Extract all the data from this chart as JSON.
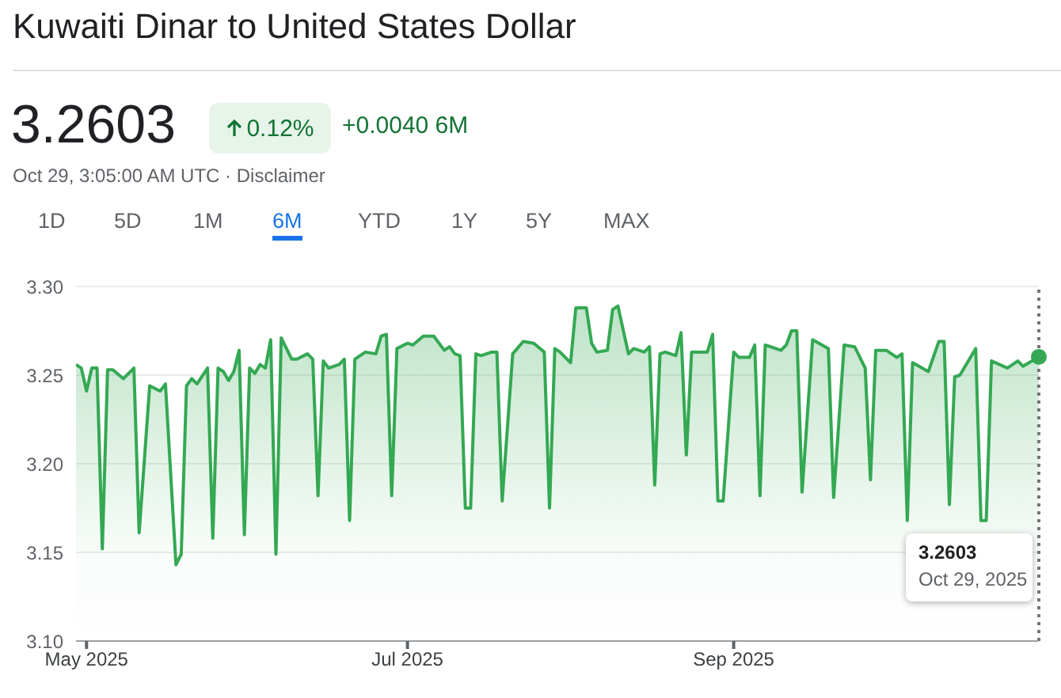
{
  "chart_data": {
    "type": "area",
    "title": "Kuwaiti Dinar to United States Dollar",
    "annotations": [
      "3.2603",
      "0.12%",
      "+0.0040 6M",
      "Oct 29, 3:05:00 AM UTC · Disclaimer",
      "1D",
      "5D",
      "1M",
      "6M",
      "YTD",
      "1Y",
      "5Y",
      "MAX",
      "3.2603",
      "Oct 29, 2025"
    ],
    "x": [
      "2025-04-29",
      "2025-04-30",
      "2025-05-01",
      "2025-05-02",
      "2025-05-03",
      "2025-05-04",
      "2025-05-05",
      "2025-05-06",
      "2025-05-08",
      "2025-05-10",
      "2025-05-11",
      "2025-05-13",
      "2025-05-15",
      "2025-05-16",
      "2025-05-18",
      "2025-05-19",
      "2025-05-20",
      "2025-05-21",
      "2025-05-22",
      "2025-05-24",
      "2025-05-25",
      "2025-05-26",
      "2025-05-27",
      "2025-05-28",
      "2025-05-29",
      "2025-05-30",
      "2025-05-31",
      "2025-06-01",
      "2025-06-02",
      "2025-06-03",
      "2025-06-04",
      "2025-06-05",
      "2025-06-06",
      "2025-06-07",
      "2025-06-09",
      "2025-06-10",
      "2025-06-12",
      "2025-06-13",
      "2025-06-14",
      "2025-06-15",
      "2025-06-16",
      "2025-06-18",
      "2025-06-19",
      "2025-06-20",
      "2025-06-21",
      "2025-06-23",
      "2025-06-25",
      "2025-06-26",
      "2025-06-27",
      "2025-06-28",
      "2025-06-29",
      "2025-07-01",
      "2025-07-02",
      "2025-07-04",
      "2025-07-06",
      "2025-07-08",
      "2025-07-09",
      "2025-07-10",
      "2025-07-11",
      "2025-07-12",
      "2025-07-13",
      "2025-07-14",
      "2025-07-15",
      "2025-07-17",
      "2025-07-18",
      "2025-07-19",
      "2025-07-21",
      "2025-07-23",
      "2025-07-25",
      "2025-07-27",
      "2025-07-28",
      "2025-07-29",
      "2025-07-30",
      "2025-08-01",
      "2025-08-02",
      "2025-08-04",
      "2025-08-05",
      "2025-08-06",
      "2025-08-08",
      "2025-08-09",
      "2025-08-10",
      "2025-08-12",
      "2025-08-13",
      "2025-08-15",
      "2025-08-16",
      "2025-08-17",
      "2025-08-18",
      "2025-08-19",
      "2025-08-21",
      "2025-08-22",
      "2025-08-23",
      "2025-08-24",
      "2025-08-27",
      "2025-08-28",
      "2025-08-29",
      "2025-08-30",
      "2025-09-01",
      "2025-09-02",
      "2025-09-04",
      "2025-09-05",
      "2025-09-06",
      "2025-09-07",
      "2025-09-10",
      "2025-09-11",
      "2025-09-12",
      "2025-09-13",
      "2025-09-14",
      "2025-09-16",
      "2025-09-19",
      "2025-09-20",
      "2025-09-22",
      "2025-09-24",
      "2025-09-26",
      "2025-09-27",
      "2025-09-28",
      "2025-09-30",
      "2025-10-02",
      "2025-10-03",
      "2025-10-04",
      "2025-10-05",
      "2025-10-08",
      "2025-10-10",
      "2025-10-11",
      "2025-10-12",
      "2025-10-13",
      "2025-10-14",
      "2025-10-17",
      "2025-10-18",
      "2025-10-19",
      "2025-10-20",
      "2025-10-23",
      "2025-10-25",
      "2025-10-26",
      "2025-10-29"
    ],
    "series": [
      {
        "color": "#34a853",
        "values": [
          3.256,
          3.254,
          3.241,
          3.254,
          3.254,
          3.152,
          3.253,
          3.253,
          3.248,
          3.254,
          3.161,
          3.244,
          3.241,
          3.245,
          3.143,
          3.149,
          3.244,
          3.248,
          3.245,
          3.254,
          3.158,
          3.254,
          3.252,
          3.247,
          3.252,
          3.264,
          3.16,
          3.254,
          3.251,
          3.256,
          3.254,
          3.27,
          3.149,
          3.271,
          3.259,
          3.259,
          3.262,
          3.259,
          3.182,
          3.258,
          3.254,
          3.256,
          3.259,
          3.168,
          3.259,
          3.263,
          3.262,
          3.272,
          3.273,
          3.182,
          3.265,
          3.268,
          3.267,
          3.272,
          3.272,
          3.264,
          3.266,
          3.262,
          3.261,
          3.175,
          3.175,
          3.262,
          3.261,
          3.263,
          3.263,
          3.179,
          3.262,
          3.269,
          3.268,
          3.263,
          3.175,
          3.265,
          3.263,
          3.257,
          3.288,
          3.288,
          3.268,
          3.263,
          3.264,
          3.287,
          3.289,
          3.262,
          3.265,
          3.263,
          3.266,
          3.188,
          3.262,
          3.263,
          3.261,
          3.274,
          3.205,
          3.263,
          3.263,
          3.273,
          3.179,
          3.179,
          3.263,
          3.26,
          3.26,
          3.267,
          3.182,
          3.267,
          3.264,
          3.267,
          3.275,
          3.275,
          3.184,
          3.27,
          3.265,
          3.181,
          3.267,
          3.266,
          3.254,
          3.191,
          3.264,
          3.264,
          3.26,
          3.262,
          3.168,
          3.257,
          3.252,
          3.269,
          3.269,
          3.177,
          3.249,
          3.25,
          3.265,
          3.168,
          3.168,
          3.258,
          3.254,
          3.258,
          3.255,
          3.2603
        ]
      }
    ],
    "xlim": [
      "2025-04-29",
      "2025-10-29"
    ],
    "xticks": [
      {
        "value": "2025-05-01",
        "label": "May 2025"
      },
      {
        "value": "2025-07-01",
        "label": "Jul 2025"
      },
      {
        "value": "2025-09-01",
        "label": "Sep 2025"
      }
    ],
    "ylim": [
      3.1,
      3.3
    ],
    "yticks": [
      {
        "value": 3.1,
        "label": "3.10"
      },
      {
        "value": 3.15,
        "label": "3.15"
      },
      {
        "value": 3.2,
        "label": "3.20"
      },
      {
        "value": 3.25,
        "label": "3.25"
      },
      {
        "value": 3.3,
        "label": "3.30"
      }
    ],
    "grid": "y",
    "ref_lines": [
      {
        "axis": "x",
        "value": "2025-10-29",
        "color": "#757575",
        "line_style": "dotted"
      }
    ]
  }
}
